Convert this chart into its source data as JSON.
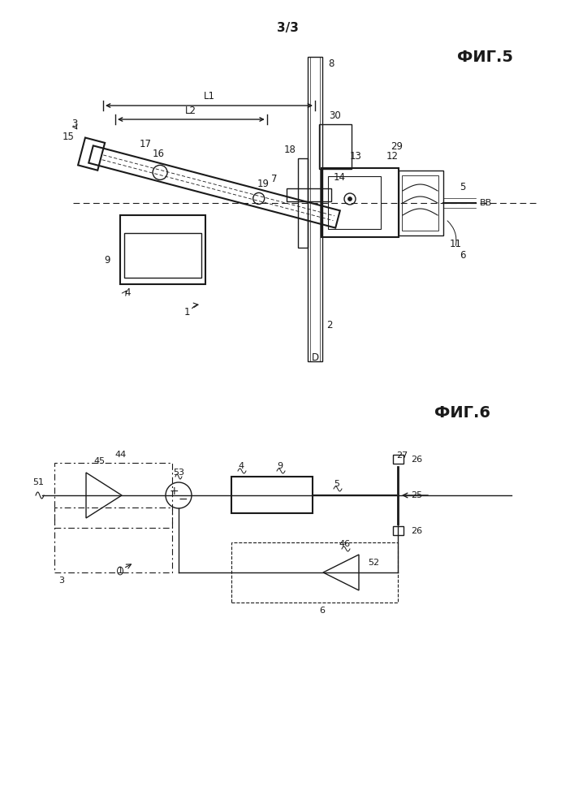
{
  "page_label": "3/3",
  "fig5_label": "ФИГ.5",
  "fig6_label": "ФИГ.6",
  "background_color": "#ffffff",
  "line_color": "#1a1a1a",
  "gray_color": "#555555"
}
